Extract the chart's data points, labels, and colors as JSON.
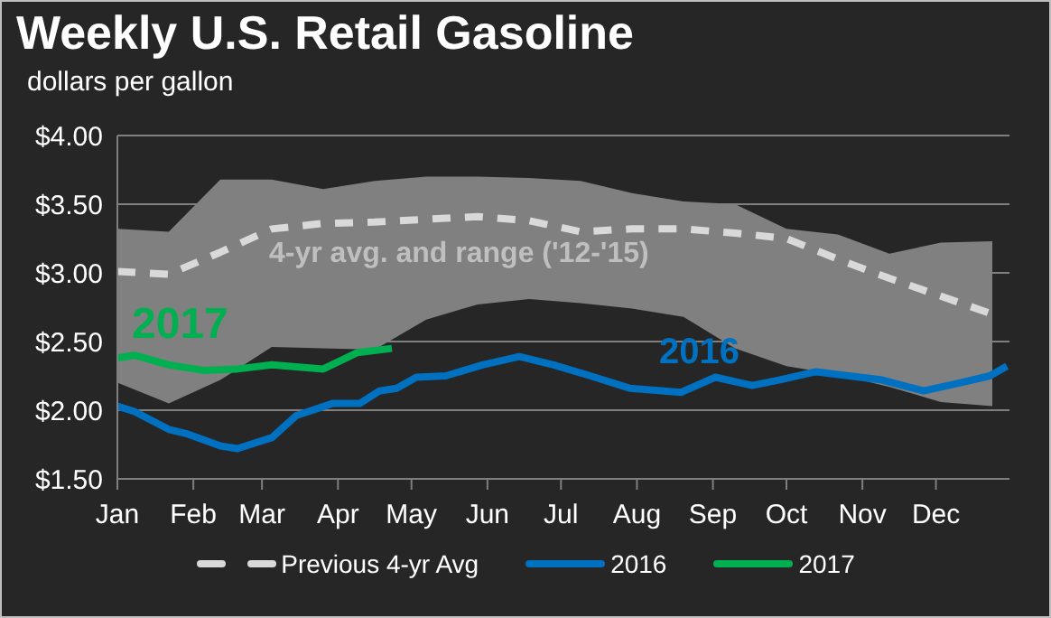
{
  "chart_data": {
    "type": "line",
    "title": "Weekly U.S. Retail Gasoline",
    "subtitle": "dollars per gallon",
    "xlim": [
      "--01-01",
      "--12-31"
    ],
    "xticks": [
      {
        "value": "--01-01",
        "label": "Jan"
      },
      {
        "value": "--02-01",
        "label": "Feb"
      },
      {
        "value": "--03-01",
        "label": "Mar"
      },
      {
        "value": "--04-01",
        "label": "Apr"
      },
      {
        "value": "--05-01",
        "label": "May"
      },
      {
        "value": "--06-01",
        "label": "Jun"
      },
      {
        "value": "--07-01",
        "label": "Jul"
      },
      {
        "value": "--08-01",
        "label": "Aug"
      },
      {
        "value": "--09-01",
        "label": "Sep"
      },
      {
        "value": "--10-01",
        "label": "Oct"
      },
      {
        "value": "--11-01",
        "label": "Nov"
      },
      {
        "value": "--12-01",
        "label": "Dec"
      }
    ],
    "ylim": [
      1.5,
      4
    ],
    "yticks": [
      {
        "value": 1.5,
        "label": "$1.50"
      },
      {
        "value": 2,
        "label": "$2.00"
      },
      {
        "value": 2.5,
        "label": "$2.50"
      },
      {
        "value": 3,
        "label": "$3.00"
      },
      {
        "value": 3.5,
        "label": "$3.50"
      },
      {
        "value": 4,
        "label": "$4.00"
      }
    ],
    "grid": "y",
    "legend": "bottom",
    "marker": "none",
    "series": [
      {
        "name": "Previous 4-yr Avg",
        "color": "#d9d9d9",
        "line_style": "dashed",
        "x": [
          "--01-01",
          "--01-22",
          "--02-12",
          "--03-05",
          "--03-26",
          "--04-16",
          "--05-07",
          "--05-28",
          "--06-18",
          "--07-09",
          "--07-30",
          "--08-20",
          "--09-10",
          "--10-01",
          "--10-22",
          "--11-12",
          "--12-03",
          "--12-24"
        ],
        "values": [
          3.01,
          2.99,
          3.15,
          3.32,
          3.36,
          3.37,
          3.39,
          3.41,
          3.38,
          3.3,
          3.32,
          3.32,
          3.29,
          3.25,
          3.1,
          2.96,
          2.83,
          2.7
        ],
        "lower": [
          2.2,
          2.05,
          2.22,
          2.46,
          2.45,
          2.44,
          2.66,
          2.77,
          2.81,
          2.78,
          2.74,
          2.68,
          2.45,
          2.32,
          2.26,
          2.17,
          2.06,
          2.03
        ],
        "upper": [
          3.32,
          3.3,
          3.68,
          3.68,
          3.61,
          3.67,
          3.7,
          3.7,
          3.69,
          3.67,
          3.58,
          3.52,
          3.5,
          3.32,
          3.28,
          3.14,
          3.22,
          3.23
        ]
      },
      {
        "name": "2016",
        "color": "#0070c0",
        "line_style": "solid",
        "x": [
          "--01-01",
          "--01-08",
          "--01-22",
          "--01-29",
          "--02-12",
          "--02-19",
          "--03-05",
          "--03-15",
          "--03-30",
          "--04-10",
          "--04-18",
          "--04-25",
          "--05-03",
          "--05-15",
          "--05-30",
          "--06-14",
          "--06-28",
          "--07-13",
          "--07-29",
          "--08-19",
          "--09-02",
          "--09-17",
          "--09-28",
          "--10-13",
          "--11-09",
          "--11-26",
          "--12-11",
          "--12-23",
          "--12-30"
        ],
        "values": [
          2.03,
          1.99,
          1.86,
          1.83,
          1.74,
          1.72,
          1.8,
          1.96,
          2.05,
          2.05,
          2.14,
          2.16,
          2.24,
          2.25,
          2.33,
          2.39,
          2.33,
          2.25,
          2.16,
          2.13,
          2.24,
          2.18,
          2.22,
          2.28,
          2.22,
          2.14,
          2.2,
          2.25,
          2.32
        ]
      },
      {
        "name": "2017",
        "color": "#00b050",
        "line_style": "solid",
        "x": [
          "--01-01",
          "--01-08",
          "--01-22",
          "--02-05",
          "--02-19",
          "--03-05",
          "--03-26",
          "--04-09",
          "--04-23"
        ],
        "values": [
          2.38,
          2.4,
          2.33,
          2.29,
          2.3,
          2.33,
          2.3,
          2.42,
          2.45
        ]
      }
    ],
    "annotations": [
      "4-yr avg. and range ('12-'15)",
      "2017",
      "2016"
    ]
  }
}
